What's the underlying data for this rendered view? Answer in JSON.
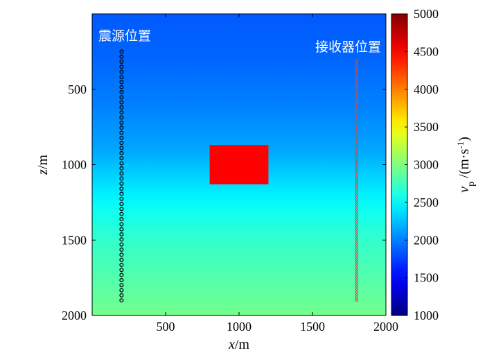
{
  "chart_data": {
    "type": "heatmap",
    "title": "",
    "xlabel": {
      "var": "x",
      "unit": "/m"
    },
    "ylabel": {
      "var": "z",
      "unit": "/m"
    },
    "xlim": [
      0,
      2000
    ],
    "ylim": [
      2000,
      0
    ],
    "y_inverted": true,
    "x_ticks": [
      "500",
      "1000",
      "1500",
      "2000"
    ],
    "y_ticks": [
      "500",
      "1000",
      "1500",
      "2000"
    ],
    "grid": false,
    "colormap": "jet",
    "background_velocity_profile": {
      "z": [
        0,
        300,
        600,
        900,
        1200,
        1300,
        1500,
        1800,
        2000
      ],
      "vp": [
        1850,
        1900,
        2000,
        2150,
        2450,
        2550,
        2700,
        2850,
        2950
      ]
    },
    "anomaly": {
      "x_range": [
        800,
        1200
      ],
      "z_range": [
        870,
        1130
      ],
      "vp": 4550,
      "color": "#ff0000"
    },
    "colorbar": {
      "range": [
        1000,
        5000
      ],
      "ticks": [
        "1000",
        "1500",
        "2000",
        "2500",
        "3000",
        "3500",
        "4000",
        "4500",
        "5000"
      ],
      "label": {
        "var": "v",
        "sub": "p",
        "unit": " /(m·s",
        "sup": "-1",
        "close": ")"
      }
    },
    "series": [
      {
        "name": "震源位置",
        "marker": "circle",
        "color": "#000000",
        "x": 200,
        "z_start": 250,
        "z_end": 1900,
        "count": 50
      },
      {
        "name": "接收器位置",
        "marker": "x",
        "color": "#c0504d",
        "x": 1800,
        "z_start": 310,
        "z_end": 1900,
        "count": 100
      }
    ],
    "annotations": [
      {
        "text": "震源位置"
      },
      {
        "text": "接收器位置"
      }
    ]
  }
}
